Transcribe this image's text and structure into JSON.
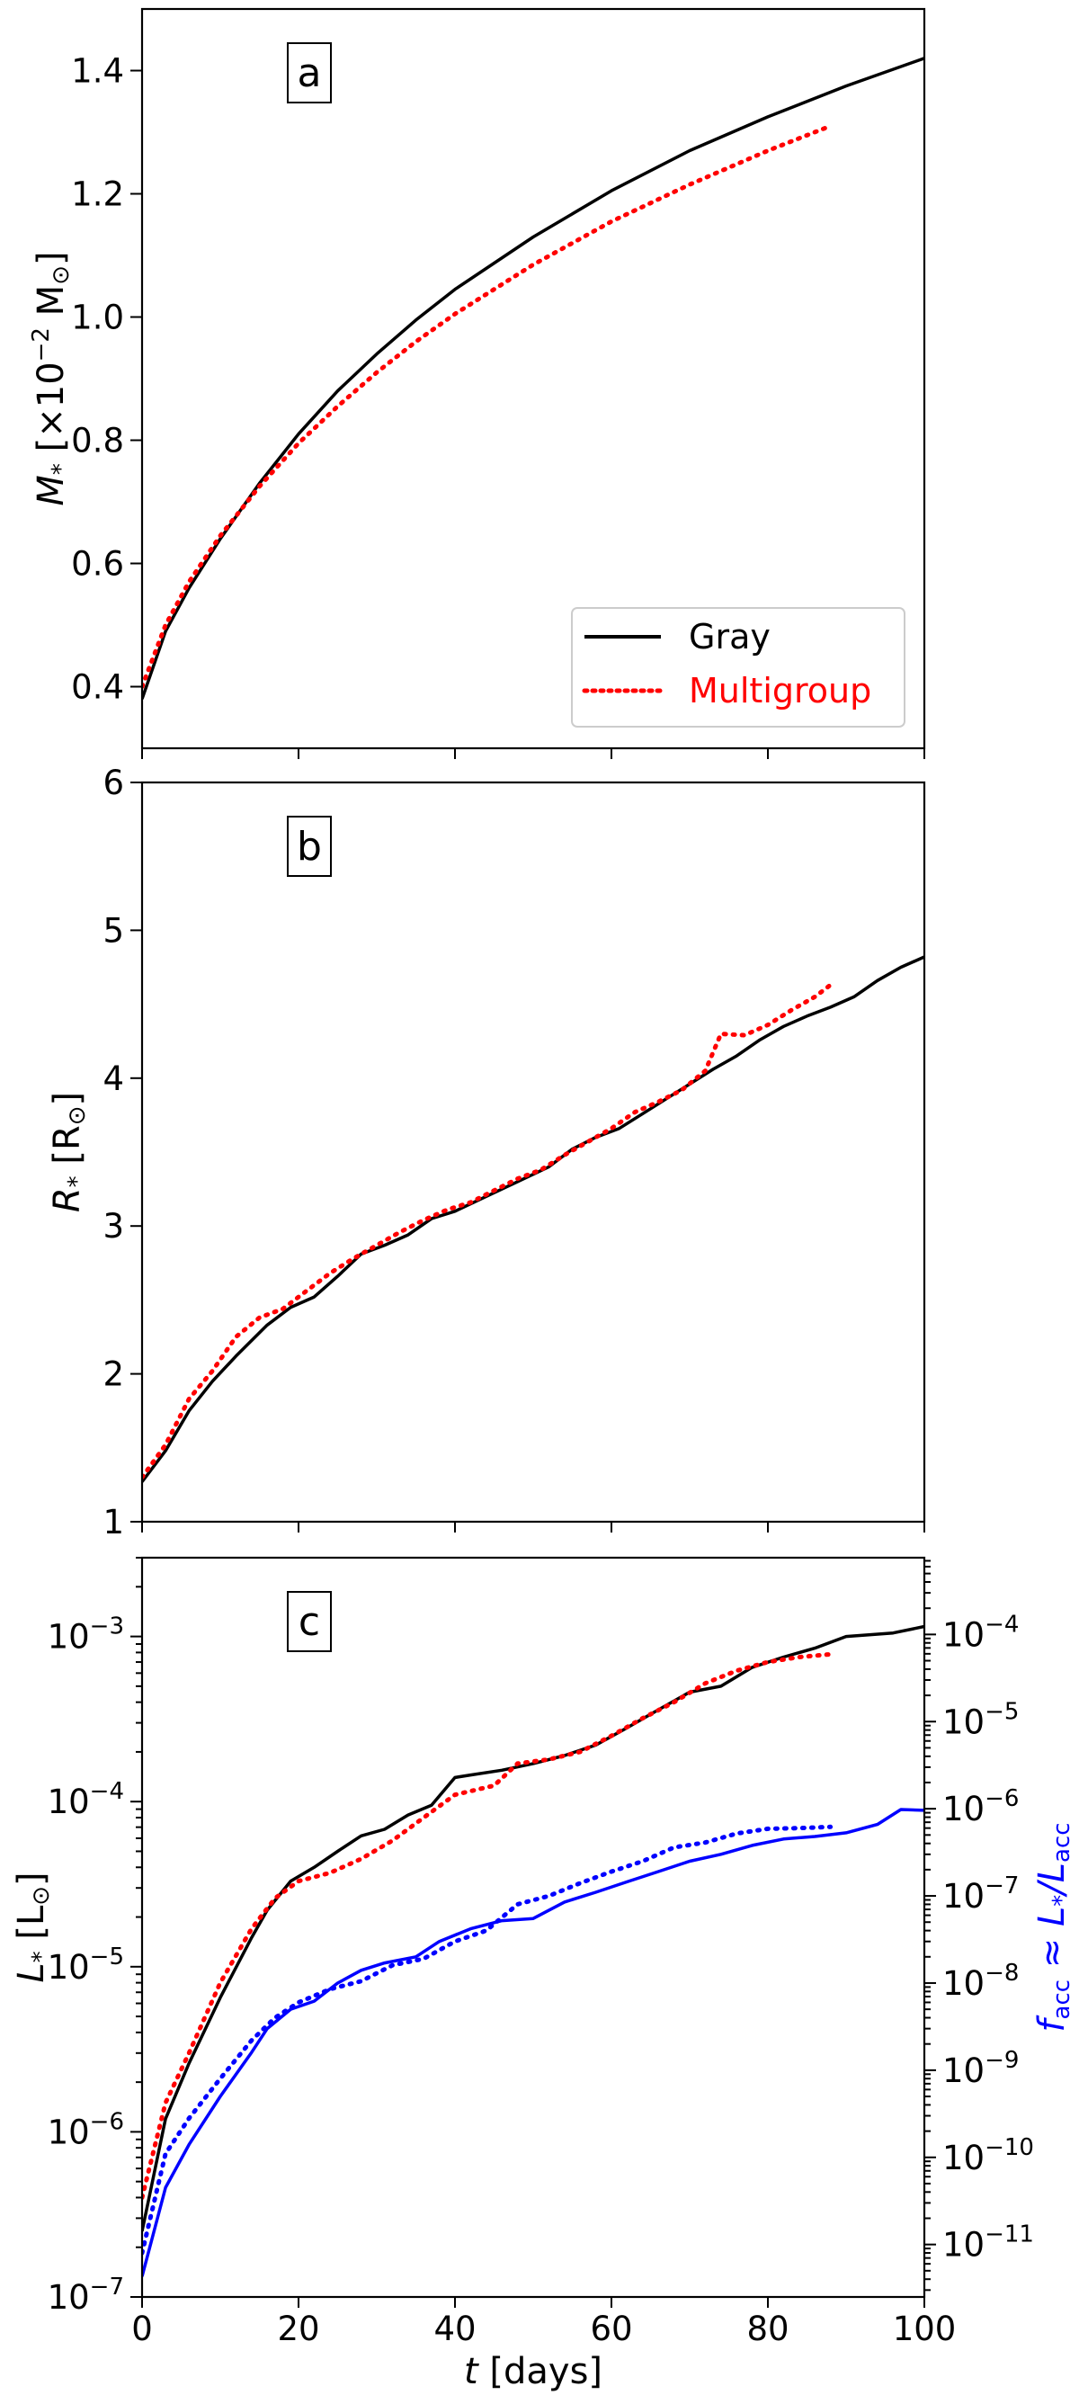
{
  "figure": {
    "panels": [
      {
        "letter": "a",
        "ylabel_main": "M",
        "ylabel_sub": "*",
        "ylabel_unit": " [×10",
        "ylabel_exp": "−2",
        "ylabel_end": " M",
        "ylabel_sun": "⊙",
        "ylabel_close": "]"
      },
      {
        "letter": "b",
        "ylabel_main": "R",
        "ylabel_sub": "*",
        "ylabel_unit": " [R",
        "ylabel_sun": "⊙",
        "ylabel_close": "]"
      },
      {
        "letter": "c",
        "ylabel_main": "L",
        "ylabel_sub": "*",
        "ylabel_unit": " [L",
        "ylabel_sun": "⊙",
        "ylabel_close": "]",
        "y2label_f": "f",
        "y2label_fsub": "acc",
        "y2label_mid": " ≈ L",
        "y2label_star": "*",
        "y2label_slash": "/L",
        "y2label_lsub": "acc"
      }
    ],
    "xlabel_t": "t",
    "xlabel_rest": " [days]",
    "legend": {
      "gray": "Gray",
      "multigroup": "Multigroup"
    }
  },
  "chart_data": [
    {
      "type": "line",
      "panel": "a",
      "xlabel": "",
      "ylabel": "M* [×10⁻² M⊙]",
      "xlim": [
        0,
        100
      ],
      "ylim": [
        0.3,
        1.5
      ],
      "xticks": [
        0,
        20,
        40,
        60,
        80,
        100
      ],
      "yticks": [
        0.4,
        0.6,
        0.8,
        1.0,
        1.2,
        1.4
      ],
      "ytick_labels": [
        "0.4",
        "0.6",
        "0.8",
        "1.0",
        "1.2",
        "1.4"
      ],
      "legend_position": "lower-right",
      "series": [
        {
          "name": "Gray",
          "color": "#000000",
          "style": "solid",
          "x": [
            0,
            3,
            6,
            10,
            15,
            20,
            25,
            30,
            35,
            40,
            50,
            60,
            70,
            80,
            90,
            100
          ],
          "y": [
            0.38,
            0.49,
            0.56,
            0.64,
            0.73,
            0.81,
            0.88,
            0.94,
            0.995,
            1.045,
            1.13,
            1.205,
            1.27,
            1.325,
            1.375,
            1.42
          ]
        },
        {
          "name": "Multigroup",
          "color": "#ff0000",
          "style": "dotted",
          "x": [
            0,
            3,
            6,
            10,
            15,
            20,
            25,
            30,
            35,
            40,
            50,
            60,
            70,
            80,
            88
          ],
          "y": [
            0.4,
            0.5,
            0.57,
            0.645,
            0.725,
            0.795,
            0.855,
            0.91,
            0.96,
            1.005,
            1.085,
            1.155,
            1.215,
            1.27,
            1.31
          ]
        }
      ]
    },
    {
      "type": "line",
      "panel": "b",
      "xlabel": "",
      "ylabel": "R* [R⊙]",
      "xlim": [
        0,
        100
      ],
      "ylim": [
        1,
        6
      ],
      "xticks": [
        0,
        20,
        40,
        60,
        80,
        100
      ],
      "yticks": [
        1,
        2,
        3,
        4,
        5,
        6
      ],
      "ytick_labels": [
        "1",
        "2",
        "3",
        "4",
        "5",
        "6"
      ],
      "series": [
        {
          "name": "Gray",
          "color": "#000000",
          "style": "solid",
          "x": [
            0,
            3,
            6,
            9,
            12,
            16,
            19,
            22,
            25,
            28,
            31,
            34,
            37,
            40,
            44,
            48,
            52,
            55,
            58,
            61,
            64,
            67,
            70,
            73,
            76,
            79,
            82,
            85,
            88,
            91,
            94,
            97,
            100
          ],
          "y": [
            1.27,
            1.48,
            1.75,
            1.95,
            2.12,
            2.33,
            2.45,
            2.52,
            2.66,
            2.81,
            2.87,
            2.94,
            3.05,
            3.1,
            3.2,
            3.3,
            3.4,
            3.52,
            3.6,
            3.66,
            3.76,
            3.86,
            3.96,
            4.06,
            4.15,
            4.26,
            4.35,
            4.42,
            4.48,
            4.55,
            4.66,
            4.75,
            4.82
          ]
        },
        {
          "name": "Multigroup",
          "color": "#ff0000",
          "style": "dotted",
          "x": [
            0,
            3,
            6,
            9,
            12,
            15,
            18,
            21,
            24,
            27,
            30,
            33,
            36,
            39,
            42,
            45,
            48,
            51,
            54,
            57,
            60,
            63,
            66,
            69,
            72,
            74,
            77,
            80,
            83,
            86,
            88
          ],
          "y": [
            1.3,
            1.52,
            1.83,
            2.02,
            2.25,
            2.38,
            2.44,
            2.56,
            2.68,
            2.78,
            2.87,
            2.96,
            3.04,
            3.11,
            3.16,
            3.24,
            3.32,
            3.38,
            3.48,
            3.57,
            3.66,
            3.77,
            3.84,
            3.92,
            4.05,
            4.3,
            4.29,
            4.36,
            4.46,
            4.55,
            4.63
          ]
        }
      ]
    },
    {
      "type": "line",
      "panel": "c",
      "xlabel": "t [days]",
      "ylabel": "L* [L⊙]",
      "y2label": "f_acc ≈ L*/L_acc",
      "y2color": "#0000ff",
      "xlim": [
        0,
        100
      ],
      "ylim": [
        1e-07,
        0.003
      ],
      "yscale": "log",
      "y2lim": [
        2.5e-12,
        0.00076
      ],
      "y2scale": "log",
      "xticks": [
        0,
        20,
        40,
        60,
        80,
        100
      ],
      "yticks": [
        1e-07,
        1e-06,
        1e-05,
        0.0001,
        0.001
      ],
      "y2ticks": [
        1e-11,
        1e-10,
        1e-09,
        1e-08,
        1e-07,
        1e-06,
        1e-05,
        0.0001
      ],
      "series": [
        {
          "name": "Gray",
          "axis": "left",
          "color": "#000000",
          "style": "solid",
          "x": [
            0,
            3,
            6,
            10,
            14,
            16,
            19,
            22,
            25,
            28,
            31,
            34,
            37,
            40,
            42,
            46,
            50,
            54,
            58,
            62,
            66,
            70,
            74,
            78,
            82,
            86,
            90,
            96,
            100
          ],
          "y": [
            2.5e-07,
            1.2e-06,
            2.6e-06,
            6.5e-06,
            1.5e-05,
            2.2e-05,
            3.3e-05,
            4e-05,
            5e-05,
            6.2e-05,
            6.8e-05,
            8.3e-05,
            9.5e-05,
            0.00014,
            0.000145,
            0.000155,
            0.00017,
            0.00019,
            0.00022,
            0.00028,
            0.00036,
            0.00046,
            0.0005,
            0.00065,
            0.00075,
            0.00085,
            0.001,
            0.00105,
            0.00115
          ]
        },
        {
          "name": "Multigroup",
          "axis": "left",
          "color": "#ff0000",
          "style": "dotted",
          "x": [
            0,
            3,
            6,
            10,
            14,
            17,
            20,
            24,
            28,
            32,
            36,
            40,
            45,
            48,
            52,
            56,
            60,
            64,
            68,
            72,
            76,
            80,
            84,
            88
          ],
          "y": [
            4e-07,
            1.5e-06,
            3e-06,
            8e-06,
            1.7e-05,
            2.6e-05,
            3.3e-05,
            3.7e-05,
            4.5e-05,
            5.8e-05,
            8e-05,
            0.00011,
            0.000125,
            0.00017,
            0.00018,
            0.0002,
            0.00025,
            0.00032,
            0.0004,
            0.00052,
            0.00062,
            0.0007,
            0.00075,
            0.00078
          ]
        },
        {
          "name": "Gray",
          "axis": "right",
          "color": "#0000ff",
          "style": "solid",
          "x": [
            0,
            3,
            6,
            10,
            14,
            16,
            19,
            22,
            25,
            28,
            31,
            35,
            38,
            42,
            46,
            50,
            54,
            58,
            62,
            66,
            70,
            74,
            78,
            82,
            86,
            90,
            94,
            97,
            100
          ],
          "y": [
            4.3e-12,
            4.5e-11,
            1.4e-10,
            5e-10,
            1.6e-09,
            3e-09,
            5e-09,
            6.2e-09,
            1e-08,
            1.4e-08,
            1.7e-08,
            2e-08,
            3e-08,
            4.2e-08,
            5.2e-08,
            5.5e-08,
            8.5e-08,
            1.1e-07,
            1.45e-07,
            1.9e-07,
            2.5e-07,
            3e-07,
            3.8e-07,
            4.5e-07,
            4.8e-07,
            5.3e-07,
            6.6e-07,
            9.8e-07,
            9.6e-07
          ]
        },
        {
          "name": "Multigroup",
          "axis": "right",
          "color": "#0000ff",
          "style": "dotted",
          "x": [
            0,
            3,
            6,
            10,
            14,
            17,
            20,
            24,
            28,
            32,
            36,
            40,
            44,
            48,
            52,
            56,
            60,
            64,
            68,
            72,
            76,
            80,
            84,
            88
          ],
          "y": [
            8e-12,
            1.1e-10,
            2.8e-10,
            8e-10,
            2.2e-09,
            4e-09,
            6e-09,
            8.5e-09,
            1.05e-08,
            1.6e-08,
            1.9e-08,
            3e-08,
            4e-08,
            8e-08,
            1e-07,
            1.4e-07,
            1.9e-07,
            2.5e-07,
            3.6e-07,
            4.1e-07,
            5.2e-07,
            5.9e-07,
            6e-07,
            6.2e-07
          ]
        }
      ]
    }
  ]
}
